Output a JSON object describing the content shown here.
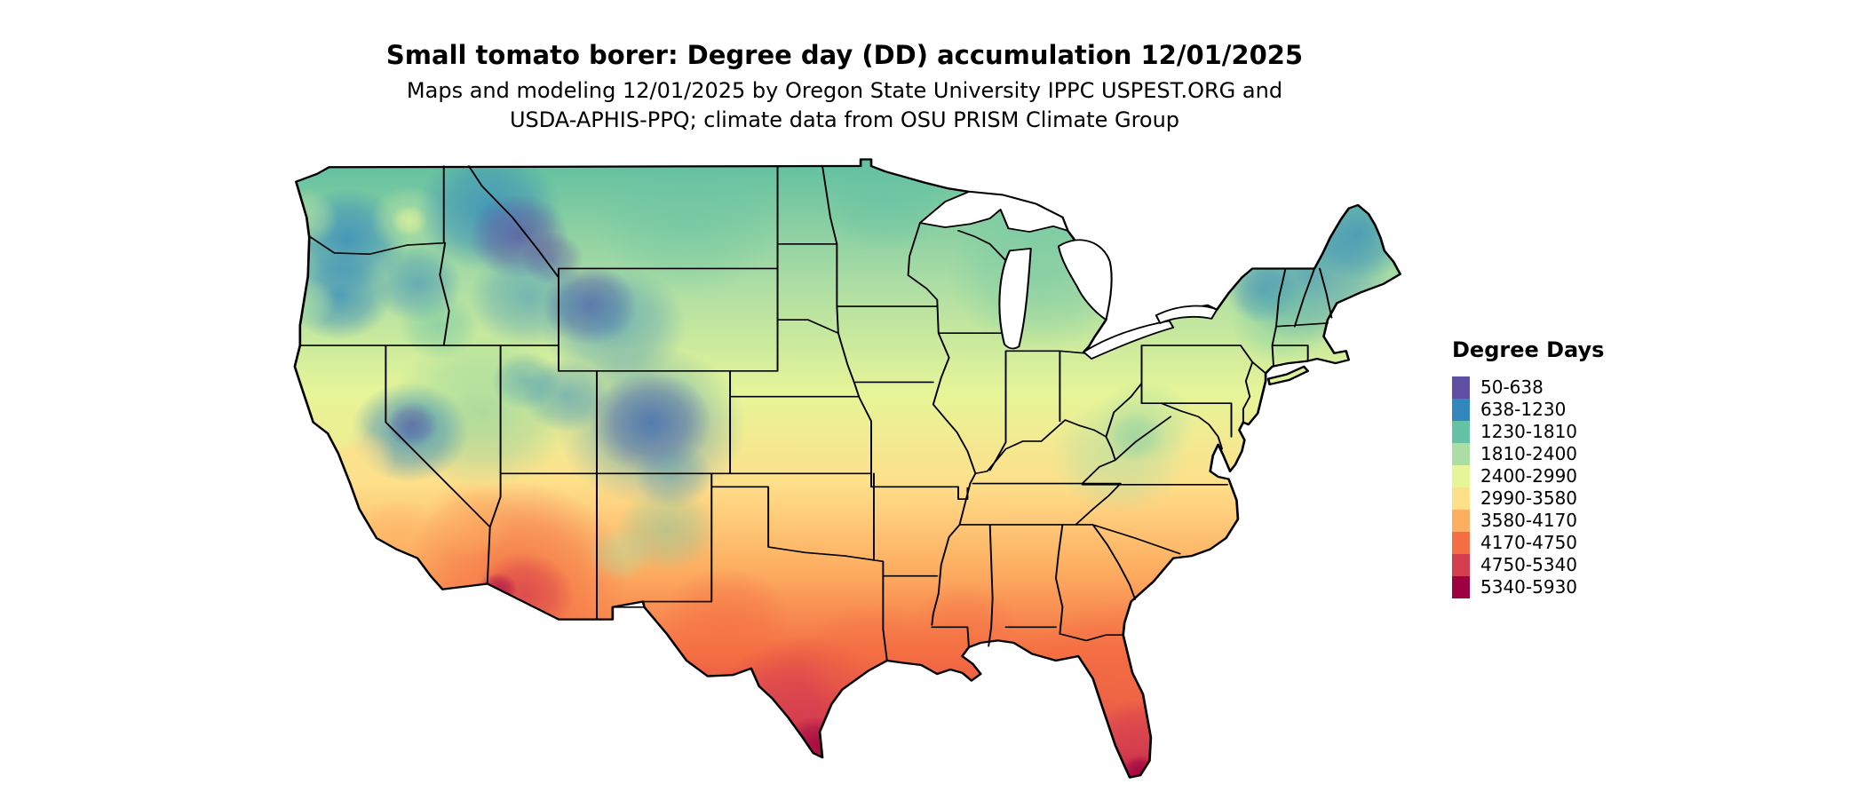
{
  "title": "Small tomato borer: Degree day (DD) accumulation 12/01/2025",
  "subtitle": {
    "line1": "Maps and modeling 12/01/2025 by Oregon State University IPPC USPEST.ORG and",
    "line2": "USDA-APHIS-PPQ; climate data from OSU PRISM Climate Group"
  },
  "legend": {
    "title": "Degree Days",
    "entries": [
      {
        "label": "50-638",
        "color": "#5E4FA2"
      },
      {
        "label": "638-1230",
        "color": "#3288BD"
      },
      {
        "label": "1230-1810",
        "color": "#66C2A5"
      },
      {
        "label": "1810-2400",
        "color": "#ABDDA4"
      },
      {
        "label": "2400-2990",
        "color": "#E6F598"
      },
      {
        "label": "2990-3580",
        "color": "#FEE08B"
      },
      {
        "label": "3580-4170",
        "color": "#FDAE61"
      },
      {
        "label": "4170-4750",
        "color": "#F46D43"
      },
      {
        "label": "4750-5340",
        "color": "#D53E4F"
      },
      {
        "label": "5340-5930",
        "color": "#9E0142"
      }
    ]
  },
  "chart_data": {
    "type": "heatmap",
    "title": "Small tomato borer: Degree day (DD) accumulation 12/01/2025",
    "region": "Continental United States",
    "unit": "degree days (DD)",
    "date": "12/01/2025",
    "bins": [
      {
        "range": "50-638",
        "color": "#5E4FA2"
      },
      {
        "range": "638-1230",
        "color": "#3288BD"
      },
      {
        "range": "1230-1810",
        "color": "#66C2A5"
      },
      {
        "range": "1810-2400",
        "color": "#ABDDA4"
      },
      {
        "range": "2400-2990",
        "color": "#E6F598"
      },
      {
        "range": "2990-3580",
        "color": "#FEE08B"
      },
      {
        "range": "3580-4170",
        "color": "#FDAE61"
      },
      {
        "range": "4170-4750",
        "color": "#F46D43"
      },
      {
        "range": "4750-5340",
        "color": "#D53E4F"
      },
      {
        "range": "5340-5930",
        "color": "#9E0142"
      }
    ],
    "pattern": "Accumulated degree days increase from north to south. Lowest values (purple/blue, 50-1230) occur in the Cascades, Sierra Nevada, and Rocky Mountains of Idaho/Wyoming/Colorado and in northern New England; northern plains and Great Lakes are teal/green (1230-2400); central plains and Appalachians are light green to pale yellow (2400-3580); the southern tier is orange (3580-4750); highest values (red/dark red, 4750-5930) occur in southern Texas, peninsular Florida, and the Sonoran Desert of Arizona and southeastern California."
  }
}
